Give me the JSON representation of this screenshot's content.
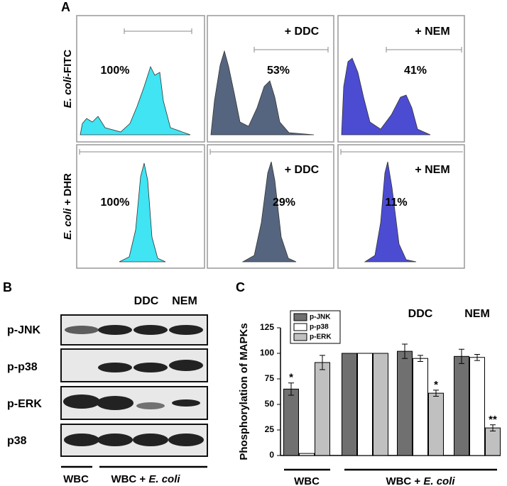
{
  "panel_a": {
    "label": "A",
    "row_labels": [
      [
        "E. coli",
        "-FITC"
      ],
      [
        "E. coli",
        " + DHR"
      ]
    ],
    "column_labels": [
      "+ DDC",
      "+ NEM"
    ],
    "percentages": [
      [
        "100%",
        "53%",
        "41%"
      ],
      [
        "100%",
        "29%",
        "11%"
      ]
    ]
  },
  "panel_b": {
    "label": "B",
    "lane_labels": [
      "DDC",
      "NEM"
    ],
    "row_labels": [
      "p-JNK",
      "p-p38",
      "p-ERK",
      "p38"
    ],
    "group_labels": [
      "WBC",
      [
        "WBC + ",
        "E. coli"
      ]
    ]
  },
  "chart_data": {
    "type": "bar",
    "panel_label": "C",
    "ylabel": "Phosphorylation of MAPKs",
    "categories": [
      null,
      null,
      "DDC",
      "NEM"
    ],
    "group_labels": [
      "WBC",
      [
        "WBC + ",
        "E. coli"
      ]
    ],
    "series": [
      {
        "name": "p-JNK",
        "color": "#707070",
        "values": [
          65,
          100,
          102,
          97
        ],
        "errors": [
          6,
          null,
          7,
          7
        ],
        "significance": [
          "*",
          null,
          null,
          null
        ]
      },
      {
        "name": "p-p38",
        "color": "#ffffff",
        "values": [
          2,
          100,
          95,
          96
        ],
        "errors": [
          null,
          null,
          3,
          3
        ],
        "significance": [
          null,
          null,
          null,
          null
        ]
      },
      {
        "name": "p-ERK",
        "color": "#c0c0c0",
        "values": [
          91,
          100,
          61,
          27
        ],
        "errors": [
          7,
          null,
          3,
          3
        ],
        "significance": [
          null,
          null,
          "*",
          "**"
        ]
      }
    ],
    "ylim": [
      0,
      125
    ],
    "yticks": [
      0,
      25,
      50,
      75,
      100,
      125
    ],
    "legend": "upper left"
  }
}
